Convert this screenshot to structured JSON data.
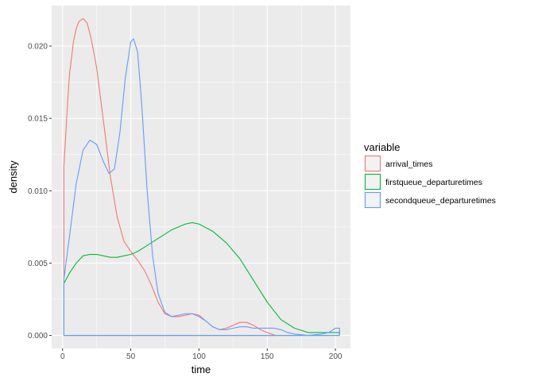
{
  "chart_data": {
    "type": "line",
    "xlabel": "time",
    "ylabel": "density",
    "xlim": [
      -8,
      211
    ],
    "ylim": [
      -0.0009,
      0.0228
    ],
    "x_ticks": [
      0,
      50,
      100,
      150,
      200
    ],
    "x_tick_labels": [
      "0",
      "50",
      "100",
      "150",
      "200"
    ],
    "y_ticks": [
      0.0,
      0.005,
      0.01,
      0.015,
      0.02
    ],
    "y_tick_labels": [
      "0.000",
      "0.005",
      "0.010",
      "0.015",
      "0.020"
    ],
    "grid": true,
    "legend": {
      "title": "variable",
      "position": "right"
    },
    "series": [
      {
        "name": "arrival_times",
        "color": "#F8766D",
        "baseline_x": [
          1,
          1,
          156,
          156
        ],
        "x": [
          1,
          3,
          5,
          8,
          10,
          12,
          15,
          18,
          21,
          25,
          30,
          35,
          40,
          45,
          50,
          55,
          60,
          65,
          70,
          75,
          80,
          85,
          90,
          95,
          100,
          105,
          110,
          115,
          120,
          125,
          130,
          135,
          140,
          145,
          150,
          156
        ],
        "values": [
          0.0117,
          0.015,
          0.018,
          0.0203,
          0.0212,
          0.0217,
          0.0219,
          0.0216,
          0.0205,
          0.0185,
          0.0148,
          0.011,
          0.0082,
          0.0065,
          0.0058,
          0.0052,
          0.0045,
          0.0035,
          0.0023,
          0.0015,
          0.0013,
          0.0013,
          0.0014,
          0.0015,
          0.0014,
          0.001,
          0.0006,
          0.0004,
          0.0005,
          0.0007,
          0.0009,
          0.0009,
          0.0007,
          0.0004,
          0.0002,
          0.0
        ]
      },
      {
        "name": "firstqueue_departuretimes",
        "color": "#00BA38",
        "baseline_x": [
          1,
          1,
          203,
          203
        ],
        "x": [
          1,
          5,
          10,
          15,
          20,
          25,
          30,
          35,
          40,
          45,
          50,
          55,
          60,
          70,
          80,
          90,
          95,
          100,
          110,
          120,
          130,
          140,
          150,
          160,
          170,
          180,
          190,
          200,
          203
        ],
        "values": [
          0.0036,
          0.0043,
          0.005,
          0.0055,
          0.0056,
          0.0056,
          0.0055,
          0.0054,
          0.0054,
          0.0055,
          0.0056,
          0.0058,
          0.0061,
          0.0067,
          0.0073,
          0.0077,
          0.0078,
          0.0077,
          0.0072,
          0.0064,
          0.0053,
          0.0038,
          0.0023,
          0.0011,
          0.0005,
          0.0002,
          0.0002,
          0.0002,
          0.0002
        ]
      },
      {
        "name": "secondqueue_departuretimes",
        "color": "#619CFF",
        "baseline_x": [
          1,
          1,
          203,
          203
        ],
        "x": [
          1,
          5,
          10,
          15,
          20,
          25,
          30,
          34,
          38,
          42,
          46,
          50,
          52,
          55,
          58,
          62,
          66,
          70,
          75,
          80,
          90,
          95,
          100,
          105,
          110,
          115,
          120,
          125,
          130,
          135,
          140,
          145,
          150,
          155,
          160,
          165,
          170,
          180,
          190,
          195,
          200,
          203
        ],
        "values": [
          0.0039,
          0.0068,
          0.0105,
          0.0128,
          0.0135,
          0.0132,
          0.012,
          0.0112,
          0.0115,
          0.014,
          0.0178,
          0.0203,
          0.0205,
          0.0196,
          0.016,
          0.01,
          0.0055,
          0.0029,
          0.0016,
          0.0013,
          0.0015,
          0.0015,
          0.0013,
          0.001,
          0.0006,
          0.0004,
          0.0004,
          0.0005,
          0.0006,
          0.0006,
          0.0005,
          0.0005,
          0.0005,
          0.0005,
          0.0004,
          0.0002,
          0.0001,
          0.0,
          0.0001,
          0.0002,
          0.0005,
          0.0005
        ]
      }
    ]
  }
}
